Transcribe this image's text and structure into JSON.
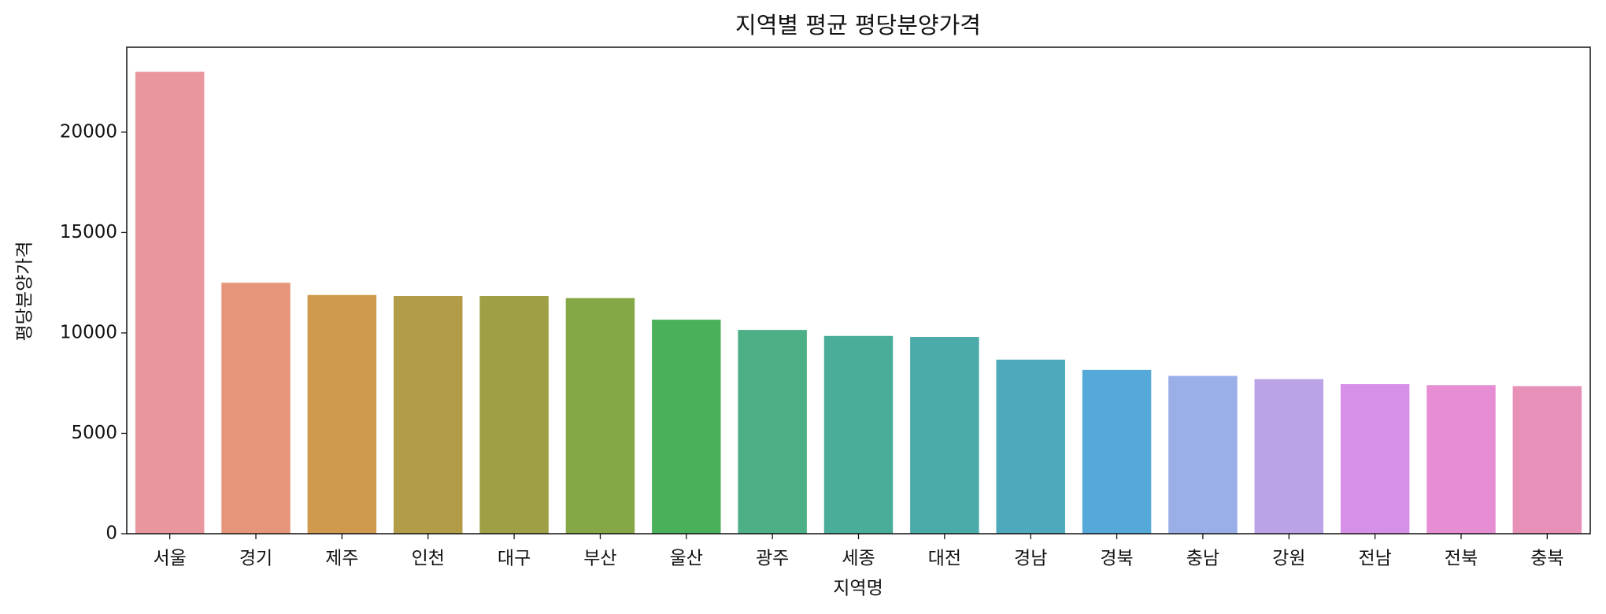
{
  "chart_data": {
    "type": "bar",
    "title": "지역별 평균 평당분양가격",
    "x_label": "지역명",
    "y_label": "평당분양가격",
    "categories": [
      "서울",
      "경기",
      "제주",
      "인천",
      "대구",
      "부산",
      "울산",
      "광주",
      "세종",
      "대전",
      "경남",
      "경북",
      "충남",
      "강원",
      "전남",
      "전북",
      "충북"
    ],
    "values": [
      23010,
      12500,
      11890,
      11840,
      11840,
      11735,
      10660,
      10150,
      9850,
      9800,
      8670,
      8160,
      7860,
      7700,
      7450,
      7400,
      7350
    ],
    "colors": [
      "#e9969f",
      "#e59579",
      "#d09a4e",
      "#b39c48",
      "#9fa045",
      "#86a746",
      "#4bb05a",
      "#4daf86",
      "#4aad9a",
      "#4aaba8",
      "#4ea9bd",
      "#54a9d8",
      "#9aaee8",
      "#bba3e8",
      "#d690e8",
      "#e78dd3",
      "#e891b8"
    ],
    "ylim": [
      0,
      24230
    ],
    "yticks": [
      0,
      5000,
      10000,
      15000,
      20000
    ],
    "grid": false
  }
}
